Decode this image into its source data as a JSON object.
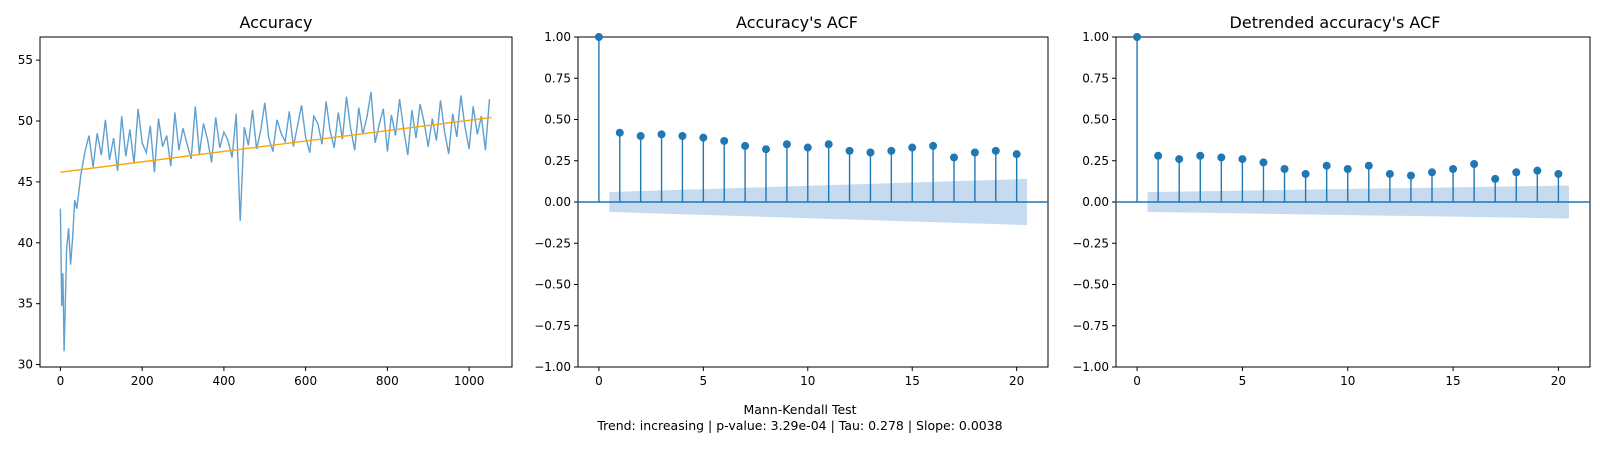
{
  "chart_data": [
    {
      "type": "line",
      "title": "Accuracy",
      "xlabel": "",
      "ylabel": "",
      "xlim": [
        -50,
        1105
      ],
      "ylim": [
        29.8,
        56.9
      ],
      "xticks": [
        0,
        200,
        400,
        600,
        800,
        1000
      ],
      "yticks": [
        30,
        35,
        40,
        45,
        50,
        55
      ],
      "series": [
        {
          "color": "#5fa0ce",
          "x": [
            0,
            3,
            6,
            9,
            12,
            15,
            20,
            25,
            30,
            35,
            40,
            50,
            60,
            70,
            80,
            90,
            100,
            110,
            120,
            130,
            140,
            150,
            160,
            170,
            180,
            190,
            200,
            210,
            220,
            230,
            240,
            250,
            260,
            270,
            280,
            290,
            300,
            310,
            320,
            330,
            340,
            350,
            360,
            370,
            380,
            390,
            400,
            410,
            420,
            430,
            440,
            450,
            460,
            470,
            480,
            490,
            500,
            510,
            520,
            530,
            540,
            550,
            560,
            570,
            580,
            590,
            600,
            610,
            620,
            630,
            640,
            650,
            660,
            670,
            680,
            690,
            700,
            710,
            720,
            730,
            740,
            750,
            760,
            770,
            780,
            790,
            800,
            810,
            820,
            830,
            840,
            850,
            860,
            870,
            880,
            890,
            900,
            910,
            920,
            930,
            940,
            950,
            960,
            970,
            980,
            990,
            1000,
            1010,
            1020,
            1030,
            1040,
            1050
          ],
          "y": [
            42.8,
            34.8,
            37.5,
            31.1,
            35.0,
            39.5,
            41.2,
            38.2,
            40.5,
            43.5,
            42.8,
            45.6,
            47.5,
            48.8,
            46.2,
            49.0,
            47.2,
            50.1,
            46.8,
            48.6,
            45.9,
            50.4,
            47.1,
            49.3,
            46.5,
            51.0,
            48.2,
            47.4,
            49.6,
            45.8,
            50.2,
            47.9,
            48.8,
            46.3,
            50.7,
            47.6,
            49.4,
            48.1,
            46.9,
            51.2,
            47.3,
            49.8,
            48.5,
            46.6,
            50.3,
            47.8,
            49.1,
            48.4,
            47.0,
            50.6,
            41.8,
            49.5,
            48.0,
            50.9,
            47.7,
            49.2,
            51.5,
            48.6,
            47.5,
            50.1,
            49.0,
            48.3,
            50.8,
            47.9,
            49.6,
            51.3,
            48.7,
            47.4,
            50.4,
            49.8,
            48.1,
            51.6,
            49.2,
            47.8,
            50.7,
            48.5,
            52.0,
            49.4,
            47.6,
            51.1,
            48.9,
            50.3,
            52.4,
            48.2,
            49.7,
            51.0,
            47.5,
            50.5,
            48.8,
            51.8,
            49.3,
            47.2,
            50.9,
            48.6,
            51.4,
            49.9,
            47.9,
            50.2,
            48.4,
            51.7,
            49.1,
            47.3,
            50.6,
            48.7,
            52.1,
            49.5,
            47.7,
            51.2,
            48.9,
            50.4,
            47.6,
            51.8
          ]
        },
        {
          "color": "#ffa500",
          "x": [
            0,
            1055
          ],
          "y": [
            45.8,
            50.3
          ]
        }
      ]
    },
    {
      "type": "stem",
      "title": "Accuracy's ACF",
      "xlim": [
        -1,
        21.5
      ],
      "ylim": [
        -1.0,
        1.0
      ],
      "xticks": [
        0,
        5,
        10,
        15,
        20
      ],
      "yticks": [
        -1.0,
        -0.75,
        -0.5,
        -0.25,
        0.0,
        0.25,
        0.5,
        0.75,
        1.0
      ],
      "ytick_labels": [
        "−1.00",
        "−0.75",
        "−0.50",
        "−0.25",
        "0.00",
        "0.25",
        "0.50",
        "0.75",
        "1.00"
      ],
      "xtick_labels": [
        "0",
        "5",
        "10",
        "15",
        "20"
      ],
      "lags": [
        0,
        1,
        2,
        3,
        4,
        5,
        6,
        7,
        8,
        9,
        10,
        11,
        12,
        13,
        14,
        15,
        16,
        17,
        18,
        19,
        20
      ],
      "values": [
        1.0,
        0.42,
        0.4,
        0.41,
        0.4,
        0.39,
        0.37,
        0.34,
        0.32,
        0.35,
        0.33,
        0.35,
        0.31,
        0.3,
        0.31,
        0.33,
        0.34,
        0.27,
        0.3,
        0.31,
        0.29
      ],
      "confidence_band": {
        "x": [
          0.5,
          20.5
        ],
        "upper": [
          0.06,
          0.14
        ],
        "lower": [
          -0.06,
          -0.14
        ]
      },
      "color": "#1f77b4",
      "band_color": "#c6dbef"
    },
    {
      "type": "stem",
      "title": "Detrended accuracy's ACF",
      "xlim": [
        -1,
        21.5
      ],
      "ylim": [
        -1.0,
        1.0
      ],
      "xticks": [
        0,
        5,
        10,
        15,
        20
      ],
      "yticks": [
        -1.0,
        -0.75,
        -0.5,
        -0.25,
        0.0,
        0.25,
        0.5,
        0.75,
        1.0
      ],
      "ytick_labels": [
        "−1.00",
        "−0.75",
        "−0.50",
        "−0.25",
        "0.00",
        "0.25",
        "0.50",
        "0.75",
        "1.00"
      ],
      "xtick_labels": [
        "0",
        "5",
        "10",
        "15",
        "20"
      ],
      "lags": [
        0,
        1,
        2,
        3,
        4,
        5,
        6,
        7,
        8,
        9,
        10,
        11,
        12,
        13,
        14,
        15,
        16,
        17,
        18,
        19,
        20
      ],
      "values": [
        1.0,
        0.28,
        0.26,
        0.28,
        0.27,
        0.26,
        0.24,
        0.2,
        0.17,
        0.22,
        0.2,
        0.22,
        0.17,
        0.16,
        0.18,
        0.2,
        0.23,
        0.14,
        0.18,
        0.19,
        0.17
      ],
      "confidence_band": {
        "x": [
          0.5,
          20.5
        ],
        "upper": [
          0.06,
          0.1
        ],
        "lower": [
          -0.06,
          -0.1
        ]
      },
      "color": "#1f77b4",
      "band_color": "#c6dbef"
    }
  ],
  "footer": {
    "line1": "Mann-Kendall Test",
    "line2": "Trend: increasing | p-value: 3.29e-04 | Tau: 0.278 | Slope: 0.0038"
  }
}
